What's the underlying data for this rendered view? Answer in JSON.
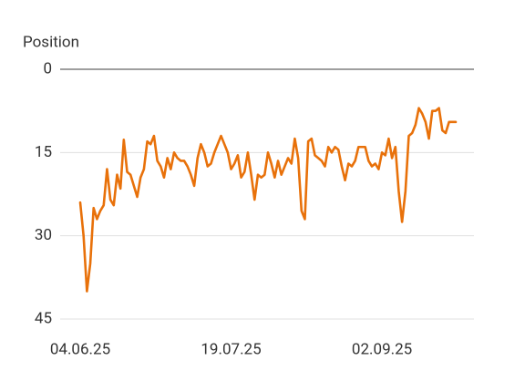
{
  "chart_data": {
    "type": "line",
    "y_axis_label": "Position",
    "categories": [
      "04.06.25",
      null,
      null,
      null,
      null,
      null,
      null,
      null,
      null,
      null,
      null,
      null,
      null,
      null,
      null,
      null,
      null,
      null,
      null,
      null,
      null,
      null,
      null,
      null,
      null,
      null,
      null,
      null,
      null,
      null,
      null,
      null,
      null,
      null,
      null,
      null,
      null,
      null,
      null,
      null,
      null,
      null,
      null,
      null,
      null,
      "19.07.25",
      null,
      null,
      null,
      null,
      null,
      null,
      null,
      null,
      null,
      null,
      null,
      null,
      null,
      null,
      null,
      null,
      null,
      null,
      null,
      null,
      null,
      null,
      null,
      null,
      null,
      null,
      null,
      null,
      null,
      null,
      null,
      null,
      null,
      null,
      null,
      null,
      null,
      null,
      null,
      null,
      null,
      null,
      null,
      null,
      "02.09.25",
      null,
      null,
      null,
      null,
      null,
      null,
      null,
      null,
      null,
      null,
      null,
      null,
      null,
      null,
      null,
      null,
      null,
      null,
      null,
      null,
      null,
      null
    ],
    "series": [
      {
        "name": "Position",
        "color": "#e8710a",
        "values": [
          24,
          30,
          40,
          35,
          25,
          27,
          25.5,
          24.5,
          18,
          23.5,
          24.5,
          19,
          21.5,
          12.7,
          18.5,
          19,
          21,
          23,
          19.5,
          18,
          13,
          13.5,
          12,
          16.5,
          17.5,
          19.5,
          16,
          18,
          15,
          16,
          16.5,
          16.5,
          17.5,
          19,
          21,
          16,
          13.5,
          15,
          17.5,
          17,
          15,
          13.5,
          12,
          13.5,
          15,
          18,
          17,
          15.5,
          19.5,
          18.5,
          15,
          19,
          23.5,
          19,
          19.5,
          19,
          15,
          17,
          19.5,
          16.5,
          19,
          17.5,
          16,
          17,
          12.5,
          16,
          25.5,
          27,
          13,
          12.5,
          15.5,
          16,
          16.5,
          17.5,
          14,
          15,
          14,
          14.5,
          17.5,
          20,
          17,
          17.5,
          16.5,
          14,
          14,
          14,
          16.5,
          17.5,
          17,
          18,
          15,
          15.5,
          12.5,
          16,
          14,
          22,
          27.5,
          22,
          12,
          11.5,
          10,
          7,
          8,
          9.5,
          12.5,
          7.5,
          7.5,
          7,
          11,
          11.5,
          9.5,
          9.5,
          9.5
        ]
      }
    ],
    "ylim": [
      0,
      45
    ],
    "yticks": [
      0,
      15,
      30,
      45
    ],
    "y_inverted": true,
    "grid": true
  }
}
